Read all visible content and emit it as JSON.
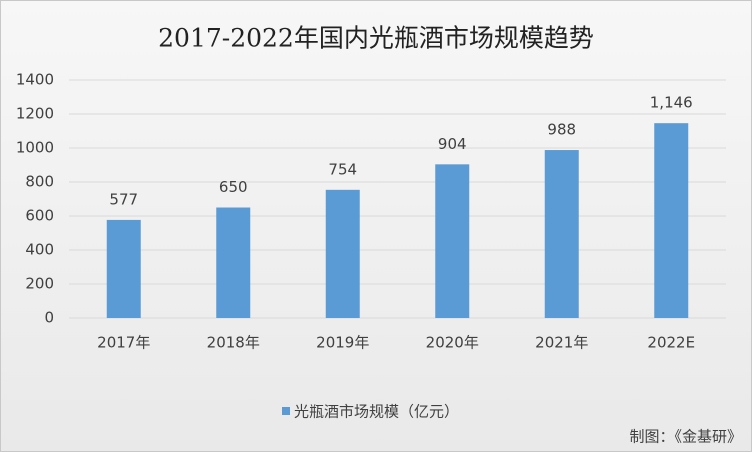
{
  "chart_data": {
    "type": "bar",
    "title": "2017-2022年国内光瓶酒市场规模趋势",
    "categories": [
      "2017年",
      "2018年",
      "2019年",
      "2020年",
      "2021年",
      "2022E"
    ],
    "series": [
      {
        "name": "光瓶酒市场规模（亿元）",
        "color": "#5b9bd5",
        "values": [
          577,
          650,
          754,
          904,
          988,
          1146
        ],
        "value_labels": [
          "577",
          "650",
          "754",
          "904",
          "988",
          "1,146"
        ]
      }
    ],
    "ylim": [
      0,
      1400
    ],
    "yticks": [
      0,
      200,
      400,
      600,
      800,
      1000,
      1200,
      1400
    ],
    "grid": true,
    "legend": "bottom",
    "source": "制图：《金基研》"
  }
}
